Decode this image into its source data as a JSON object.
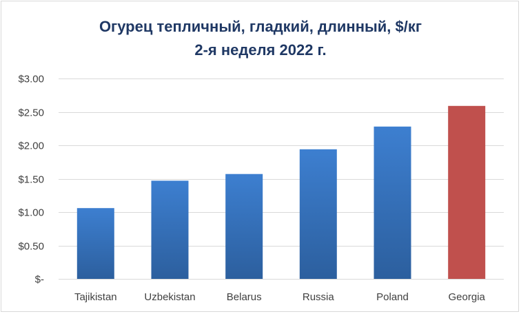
{
  "chart_data": {
    "type": "bar",
    "title": "Огурец тепличный, гладкий, длинный, $/кг",
    "subtitle": "2-я неделя 2022 г.",
    "categories": [
      "Tajikistan",
      "Uzbekistan",
      "Belarus",
      "Russia",
      "Poland",
      "Georgia"
    ],
    "values": [
      1.06,
      1.47,
      1.57,
      1.94,
      2.28,
      2.59
    ],
    "highlight_category": "Georgia",
    "ylim": [
      0,
      3.0
    ],
    "yticks": [
      0,
      0.5,
      1.0,
      1.5,
      2.0,
      2.5,
      3.0
    ],
    "ytick_labels": [
      "$-",
      "$0.50",
      "$1.00",
      "$1.50",
      "$2.00",
      "$2.50",
      "$3.00"
    ],
    "xlabel": "",
    "ylabel": "",
    "grid": true,
    "legend": "none",
    "colors": {
      "bar_top": "#3d7fd0",
      "bar_bottom": "#2c5f9e",
      "highlight": "#c0504d",
      "gridline": "#d9d9d9",
      "title": "#1f3864"
    }
  }
}
